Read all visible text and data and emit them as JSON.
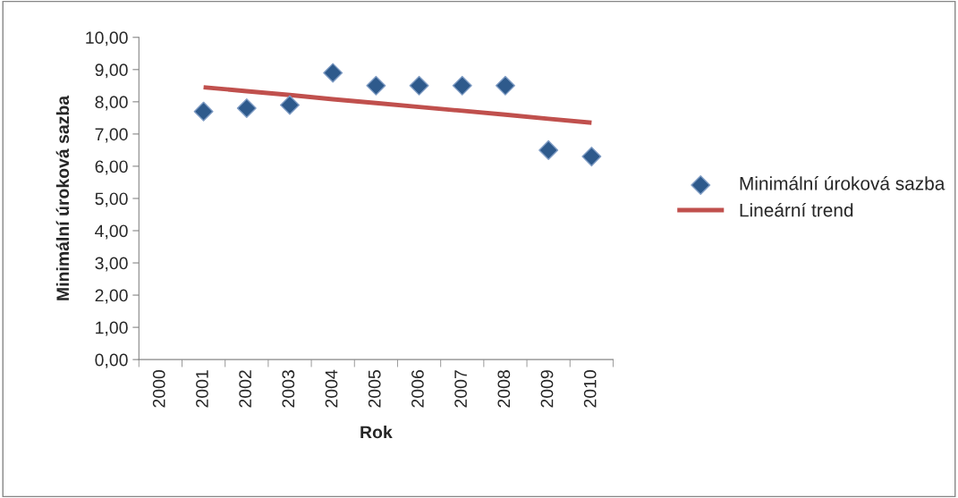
{
  "chart_data": {
    "type": "scatter",
    "xlabel": "Rok",
    "ylabel": "Minimální úroková sazba",
    "categories": [
      "2000",
      "2001",
      "2002",
      "2003",
      "2004",
      "2005",
      "2006",
      "2007",
      "2008",
      "2009",
      "2010"
    ],
    "series": [
      {
        "name": "Minimální úroková sazba",
        "color": "#2e5a8c",
        "marker": "diamond",
        "values": [
          null,
          7.7,
          7.8,
          7.9,
          8.9,
          8.5,
          8.5,
          8.5,
          8.5,
          6.5,
          6.3
        ]
      },
      {
        "name": "Lineární trend",
        "type": "line",
        "color": "#c0504d",
        "marker": "none",
        "values": [
          null,
          8.45,
          8.33,
          8.21,
          8.08,
          7.96,
          7.84,
          7.72,
          7.6,
          7.47,
          7.35
        ]
      }
    ],
    "ylim": [
      0,
      10
    ],
    "yticks": [
      {
        "value": 0,
        "label": "0,00"
      },
      {
        "value": 1,
        "label": "1,00"
      },
      {
        "value": 2,
        "label": "2,00"
      },
      {
        "value": 3,
        "label": "3,00"
      },
      {
        "value": 4,
        "label": "4,00"
      },
      {
        "value": 5,
        "label": "5,00"
      },
      {
        "value": 6,
        "label": "6,00"
      },
      {
        "value": 7,
        "label": "7,00"
      },
      {
        "value": 8,
        "label": "8,00"
      },
      {
        "value": 9,
        "label": "9,00"
      },
      {
        "value": 10,
        "label": "10,00"
      }
    ],
    "grid": false,
    "legend": "right"
  }
}
